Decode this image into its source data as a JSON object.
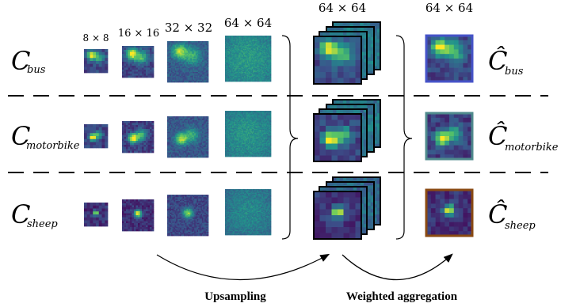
{
  "columns": {
    "size_8": "8 × 8",
    "size_16": "16 × 16",
    "size_32": "32 × 32",
    "size_64": "64 × 64",
    "size_64_stack": "64 × 64",
    "size_64_out": "64 × 64"
  },
  "rows": [
    {
      "symbol": "C",
      "subscript": "bus",
      "output_symbol": "Ĉ",
      "output_subscript": "bus",
      "frame_color": "#4653c8"
    },
    {
      "symbol": "C",
      "subscript": "motorbike",
      "output_symbol": "Ĉ",
      "output_subscript": "motorbike",
      "frame_color": "#4f8a8c"
    },
    {
      "symbol": "C",
      "subscript": "sheep",
      "output_symbol": "Ĉ",
      "output_subscript": "sheep",
      "frame_color": "#8a4a12"
    }
  ],
  "labels": {
    "upsampling": "Upsampling",
    "weighted_aggregation": "Weighted aggregation"
  },
  "colors": {
    "heat_low": "#440154",
    "heat_mid": "#21918c",
    "heat_high": "#fde725"
  }
}
